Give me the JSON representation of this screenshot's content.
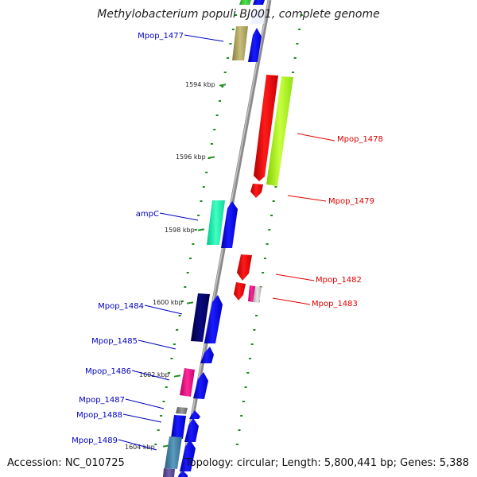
{
  "title": "Methylobacterium populi BJ001, complete genome",
  "footer": {
    "accession": "Accession: NC_010725",
    "topology": "Topology: circular; Length: 5,800,441 bp; Genes: 5,388"
  },
  "colors": {
    "minus_strand_label": "#0000c0",
    "plus_strand_label": "#e00000",
    "backbone": "#8a8a8a",
    "ticks": "#1a8c1a"
  },
  "ruler": [
    "1594 kbp",
    "1596 kbp",
    "1598 kbp",
    "1600 kbp",
    "1602 kbp",
    "1604 kbp"
  ],
  "genes": {
    "minus": [
      "Mpop_1477",
      "ampC",
      "Mpop_1484",
      "Mpop_1485",
      "Mpop_1486",
      "Mpop_1487",
      "Mpop_1488",
      "Mpop_1489"
    ],
    "plus": [
      "Mpop_1478",
      "Mpop_1479",
      "Mpop_1482",
      "Mpop_1483"
    ]
  }
}
